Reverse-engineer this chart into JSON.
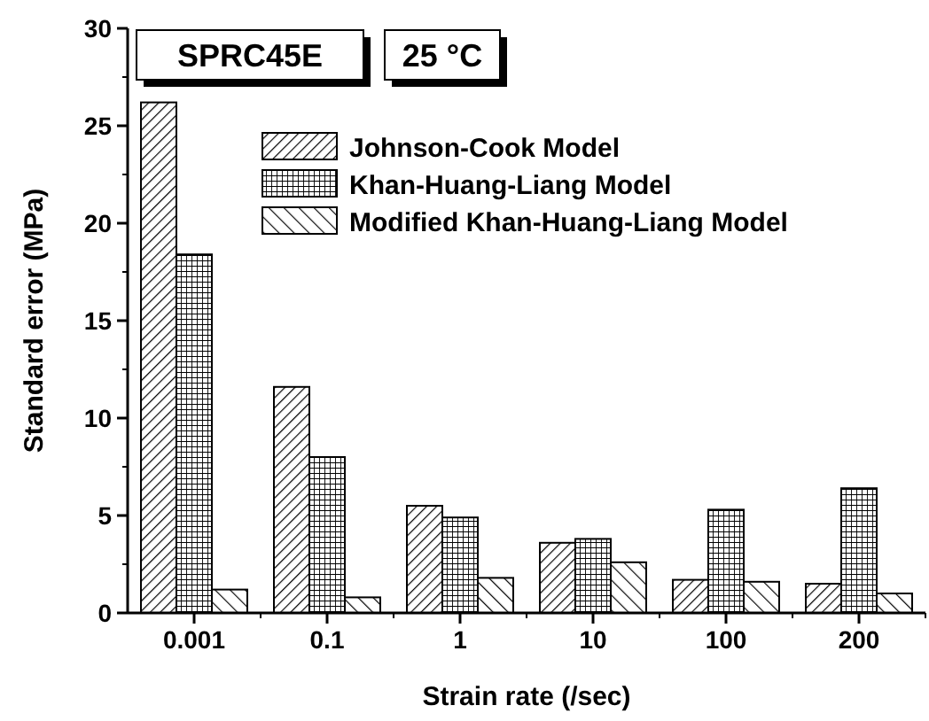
{
  "chart_data": {
    "type": "bar",
    "xlabel": "Strain rate (/sec)",
    "ylabel": "Standard error (MPa)",
    "categories": [
      "0.001",
      "0.1",
      "1",
      "10",
      "100",
      "200"
    ],
    "series": [
      {
        "name": "Johnson-Cook Model",
        "color": "#000000",
        "values": [
          26.2,
          11.6,
          5.5,
          3.6,
          1.7,
          1.5
        ]
      },
      {
        "name": "Khan-Huang-Liang Model",
        "color": "#000000",
        "values": [
          18.4,
          8.0,
          4.9,
          3.8,
          5.3,
          6.4
        ]
      },
      {
        "name": "Modified Khan-Huang-Liang Model",
        "color": "#000000",
        "values": [
          1.2,
          0.8,
          1.8,
          2.6,
          1.6,
          1.0
        ]
      }
    ],
    "ylim": [
      0,
      30
    ],
    "yticks": [
      0,
      5,
      10,
      15,
      20,
      25,
      30
    ],
    "grid": false,
    "legend": "top right",
    "annotations": [
      "SPRC45E",
      "25 °C"
    ]
  }
}
